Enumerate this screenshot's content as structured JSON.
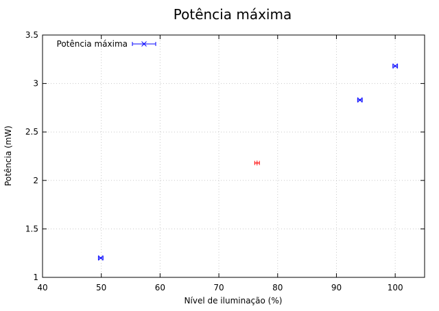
{
  "chart_data": {
    "type": "scatter",
    "title": "Potência máxima",
    "xlabel": "Nível de iluminação (%)",
    "ylabel": "Potência (mW)",
    "xlim": [
      40,
      105
    ],
    "ylim": [
      1,
      3.5
    ],
    "x_ticks": [
      40,
      50,
      60,
      70,
      80,
      90,
      100
    ],
    "y_ticks": [
      1,
      1.5,
      2,
      2.5,
      3,
      3.5
    ],
    "x_tick_labels": [
      "40",
      "50",
      "60",
      "70",
      "80",
      "90",
      "100"
    ],
    "y_tick_labels": [
      "1",
      "1.5",
      "2",
      "2.5",
      "3",
      "3.5"
    ],
    "grid": true,
    "legend_position": "top-left",
    "series": [
      {
        "name": "Potência máxima",
        "color": "#0000ff",
        "marker": "x",
        "points": [
          {
            "x": 49.9,
            "y": 1.2,
            "xerr": 0.4
          },
          {
            "x": 94.0,
            "y": 2.83,
            "xerr": 0.4
          },
          {
            "x": 100.0,
            "y": 3.18,
            "xerr": 0.4
          }
        ]
      },
      {
        "color": "#ff0000",
        "marker": "plus",
        "points": [
          {
            "x": 76.5,
            "y": 2.18,
            "xerr": 0.4
          }
        ]
      }
    ]
  }
}
